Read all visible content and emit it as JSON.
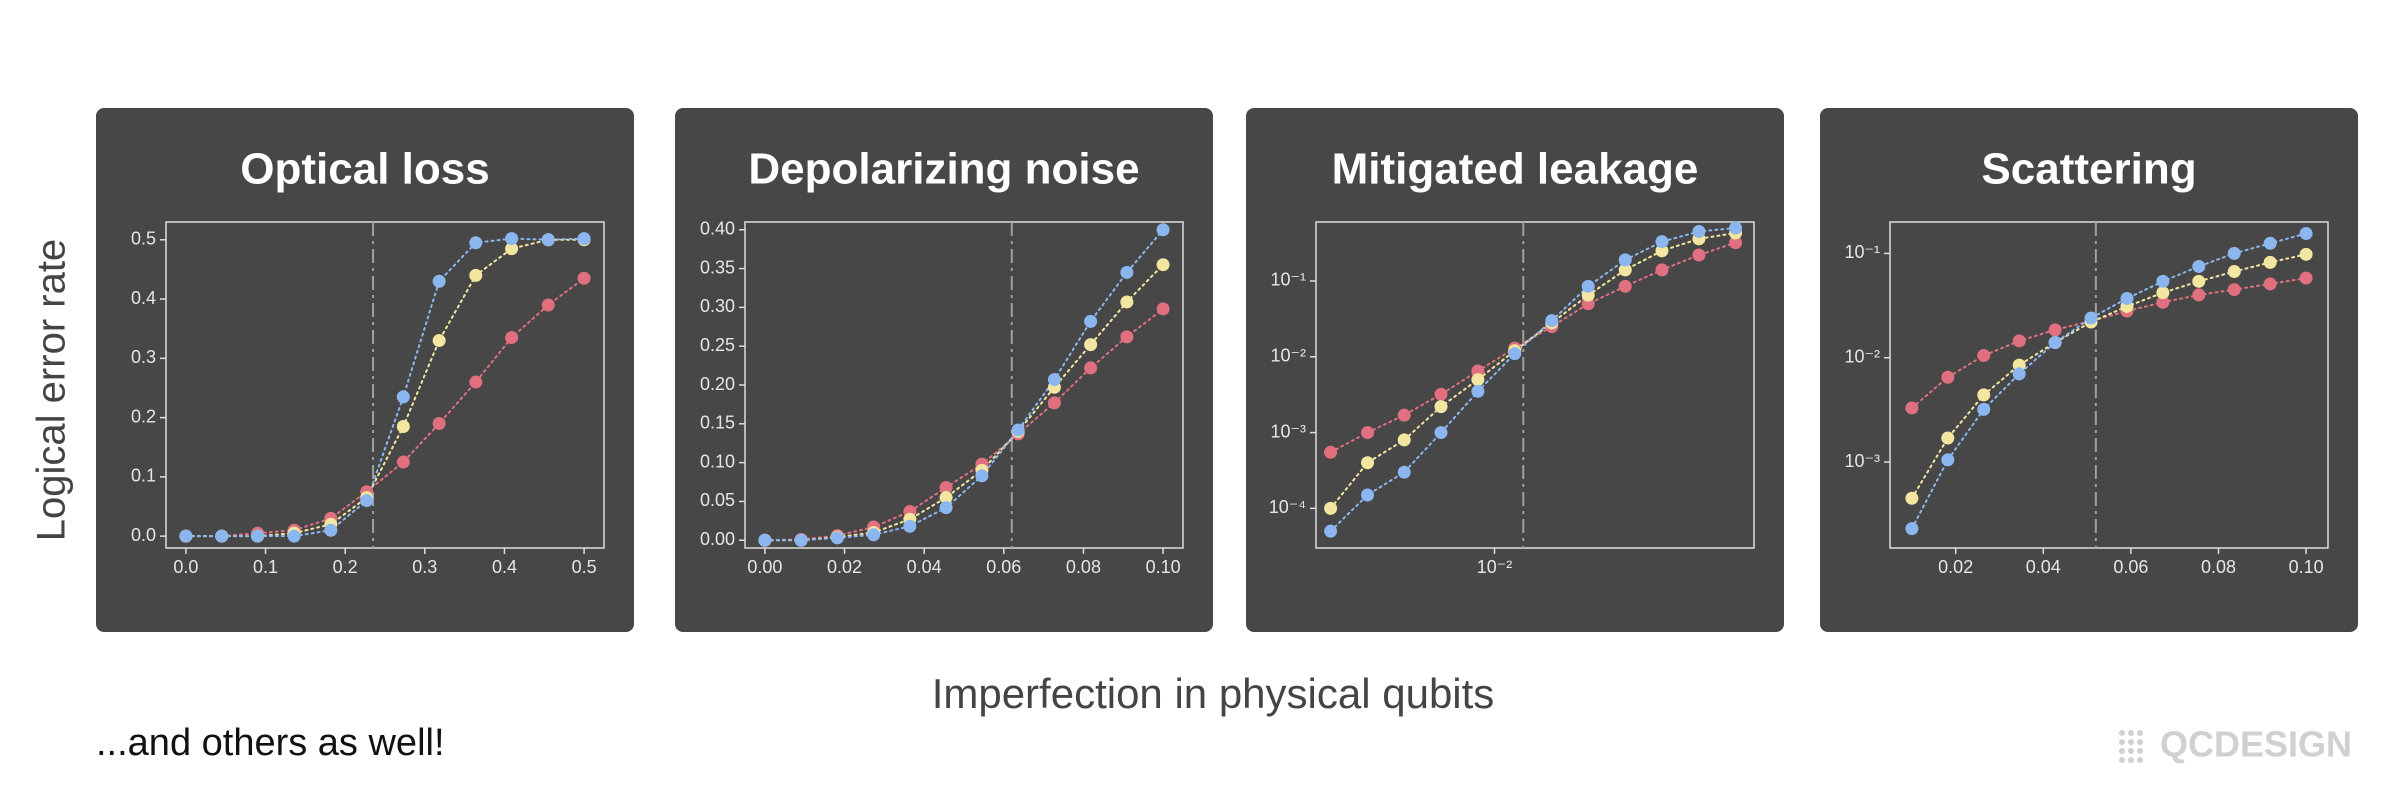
{
  "y_label": "Logical error rate",
  "x_label": "Imperfection in physical qubits",
  "footnote": "...and others as well!",
  "logo": "QCDESIGN",
  "chart_data": [
    {
      "type": "line",
      "title": "Optical loss",
      "xscale": "linear",
      "yscale": "linear",
      "threshold": 0.235,
      "x": [
        0,
        0.045,
        0.09,
        0.136,
        0.182,
        0.227,
        0.273,
        0.318,
        0.364,
        0.409,
        0.455,
        0.5
      ],
      "xlim": [
        -0.025,
        0.525
      ],
      "xticks": [
        {
          "value": 0,
          "label": "0.0"
        },
        0.1,
        0.2,
        0.3,
        0.4,
        0.5
      ],
      "ylim": [
        -0.02,
        0.53
      ],
      "yticks": [
        {
          "value": 0,
          "label": "0.0"
        },
        0.1,
        0.2,
        0.3,
        0.4,
        0.5
      ],
      "series": [
        {
          "color": "#e0707f",
          "values": [
            0,
            0,
            0.005,
            0.01,
            0.03,
            0.075,
            0.125,
            0.19,
            0.26,
            0.335,
            0.39,
            0.435
          ]
        },
        {
          "color": "#f3e6a0",
          "values": [
            0,
            0,
            0,
            0.005,
            0.02,
            0.065,
            0.185,
            0.33,
            0.44,
            0.485,
            0.5,
            0.5
          ]
        },
        {
          "color": "#8bb6f0",
          "values": [
            0,
            0,
            0,
            0,
            0.01,
            0.06,
            0.235,
            0.43,
            0.495,
            0.502,
            0.5,
            0.502
          ]
        }
      ]
    },
    {
      "type": "line",
      "title": "Depolarizing noise",
      "xscale": "linear",
      "yscale": "linear",
      "threshold": 0.062,
      "x": [
        0,
        0.0091,
        0.0182,
        0.0273,
        0.0364,
        0.0455,
        0.0545,
        0.0636,
        0.0727,
        0.0818,
        0.0909,
        0.1
      ],
      "xlim": [
        -0.005,
        0.105
      ],
      "xticks": [
        {
          "value": 0,
          "label": "0.00"
        },
        {
          "value": 0.02,
          "label": "0.02"
        },
        {
          "value": 0.04,
          "label": "0.04"
        },
        {
          "value": 0.06,
          "label": "0.06"
        },
        {
          "value": 0.08,
          "label": "0.08"
        },
        {
          "value": 0.1,
          "label": "0.10"
        }
      ],
      "ylim": [
        -0.01,
        0.41
      ],
      "yticks": [
        {
          "value": 0,
          "label": "0.00"
        },
        0.05,
        {
          "value": 0.1,
          "label": "0.10"
        },
        0.15,
        {
          "value": 0.2,
          "label": "0.20"
        },
        0.25,
        {
          "value": 0.3,
          "label": "0.30"
        },
        0.35,
        {
          "value": 0.4,
          "label": "0.40"
        }
      ],
      "series": [
        {
          "color": "#e0707f",
          "values": [
            0,
            0.001,
            0.006,
            0.017,
            0.037,
            0.068,
            0.098,
            0.137,
            0.177,
            0.222,
            0.262,
            0.298
          ]
        },
        {
          "color": "#f3e6a0",
          "values": [
            0,
            0,
            0.004,
            0.01,
            0.027,
            0.055,
            0.09,
            0.14,
            0.197,
            0.252,
            0.307,
            0.355
          ]
        },
        {
          "color": "#8bb6f0",
          "values": [
            0,
            0,
            0.003,
            0.007,
            0.018,
            0.042,
            0.083,
            0.142,
            0.207,
            0.282,
            0.345,
            0.4
          ]
        }
      ]
    },
    {
      "type": "line",
      "title": "Mitigated leakage",
      "xscale": "log",
      "yscale": "log",
      "threshold": 0.0125,
      "x": [
        0.0028,
        0.00373,
        0.00496,
        0.0066,
        0.00879,
        0.0117,
        0.0156,
        0.0207,
        0.0276,
        0.0367,
        0.0489,
        0.065
      ],
      "xlim": [
        0.0025,
        0.075
      ],
      "xticks": [
        {
          "value": 0.01,
          "label": "10⁻²"
        }
      ],
      "ylim": [
        3e-05,
        0.6
      ],
      "yticks": [
        {
          "value": 0.0001,
          "label": "10⁻⁴"
        },
        {
          "value": 0.001,
          "label": "10⁻³"
        },
        {
          "value": 0.01,
          "label": "10⁻²"
        },
        {
          "value": 0.1,
          "label": "10⁻¹"
        }
      ],
      "series": [
        {
          "color": "#e0707f",
          "values": [
            0.00055,
            0.001,
            0.0017,
            0.0032,
            0.0065,
            0.013,
            0.025,
            0.05,
            0.085,
            0.14,
            0.22,
            0.32
          ]
        },
        {
          "color": "#f3e6a0",
          "values": [
            0.0001,
            0.0004,
            0.0008,
            0.0022,
            0.005,
            0.012,
            0.028,
            0.065,
            0.14,
            0.25,
            0.36,
            0.43
          ]
        },
        {
          "color": "#8bb6f0",
          "values": [
            5e-05,
            0.00015,
            0.0003,
            0.001,
            0.0035,
            0.011,
            0.03,
            0.085,
            0.19,
            0.33,
            0.45,
            0.5
          ]
        }
      ]
    },
    {
      "type": "line",
      "title": "Scattering",
      "xscale": "linear",
      "yscale": "log",
      "threshold": 0.052,
      "x": [
        0.01,
        0.0182,
        0.0264,
        0.0345,
        0.0427,
        0.0509,
        0.0591,
        0.0673,
        0.0755,
        0.0836,
        0.0918,
        0.1
      ],
      "xlim": [
        0.005,
        0.105
      ],
      "xticks": [
        {
          "value": 0.02,
          "label": "0.02"
        },
        {
          "value": 0.04,
          "label": "0.04"
        },
        {
          "value": 0.06,
          "label": "0.06"
        },
        {
          "value": 0.08,
          "label": "0.08"
        },
        {
          "value": 0.1,
          "label": "0.10"
        }
      ],
      "ylim": [
        0.00015,
        0.2
      ],
      "yticks": [
        {
          "value": 0.001,
          "label": "10⁻³"
        },
        {
          "value": 0.01,
          "label": "10⁻²"
        },
        {
          "value": 0.1,
          "label": "10⁻¹"
        }
      ],
      "series": [
        {
          "color": "#e0707f",
          "values": [
            0.0033,
            0.0065,
            0.0105,
            0.0145,
            0.0185,
            0.0225,
            0.028,
            0.034,
            0.04,
            0.045,
            0.051,
            0.058
          ]
        },
        {
          "color": "#f3e6a0",
          "values": [
            0.00045,
            0.0017,
            0.0044,
            0.0085,
            0.014,
            0.022,
            0.031,
            0.042,
            0.054,
            0.067,
            0.082,
            0.098
          ]
        },
        {
          "color": "#8bb6f0",
          "values": [
            0.00023,
            0.00105,
            0.0032,
            0.007,
            0.014,
            0.024,
            0.037,
            0.054,
            0.075,
            0.1,
            0.125,
            0.155
          ]
        }
      ]
    }
  ]
}
